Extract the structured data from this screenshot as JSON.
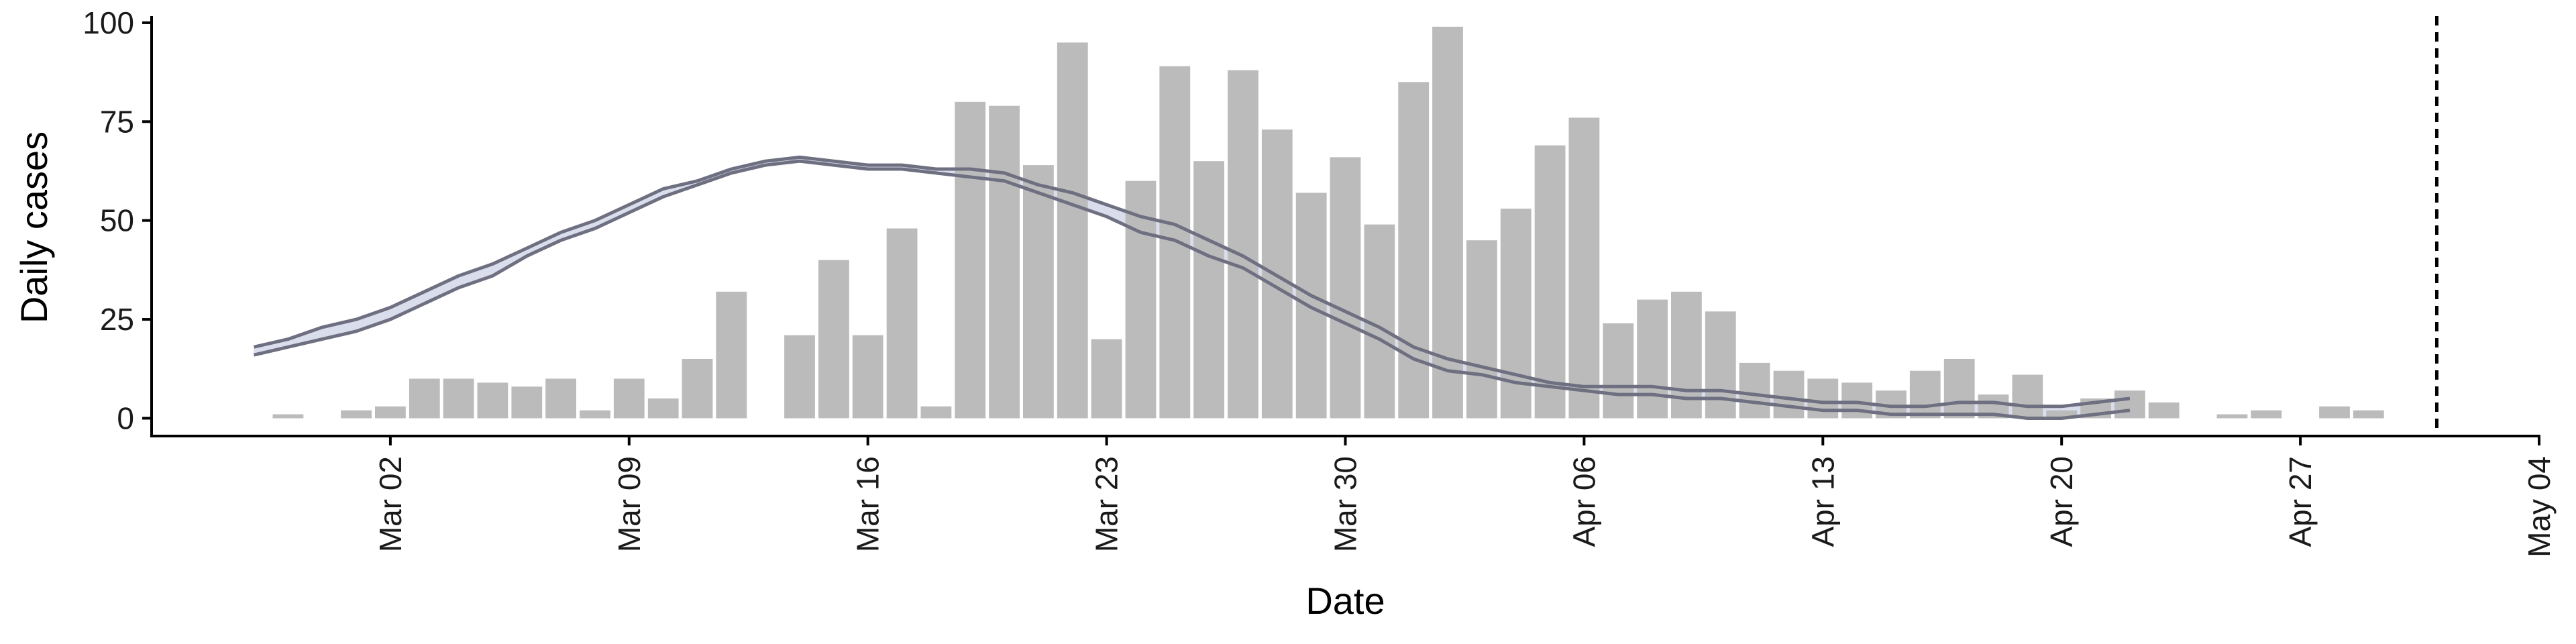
{
  "chart_data": {
    "type": "bar",
    "xlabel": "Date",
    "ylabel": "Daily cases",
    "x_tick_labels": [
      "Mar 02",
      "Mar 09",
      "Mar 16",
      "Mar 23",
      "Mar 30",
      "Apr 06",
      "Apr 13",
      "Apr 20",
      "Apr 27",
      "May 04"
    ],
    "x_tick_dates": [
      "2020-03-02",
      "2020-03-09",
      "2020-03-16",
      "2020-03-23",
      "2020-03-30",
      "2020-04-06",
      "2020-04-13",
      "2020-04-20",
      "2020-04-27",
      "2020-05-04"
    ],
    "y_ticks": [
      0,
      25,
      50,
      75,
      100
    ],
    "ylim": [
      -4.5,
      101
    ],
    "xlim": [
      "2020-02-24",
      "2020-05-04"
    ],
    "bar_color": "#bbbbbb",
    "bars": {
      "dates": [
        "2020-02-27",
        "2020-02-28",
        "2020-02-29",
        "2020-03-01",
        "2020-03-02",
        "2020-03-03",
        "2020-03-04",
        "2020-03-05",
        "2020-03-06",
        "2020-03-07",
        "2020-03-08",
        "2020-03-09",
        "2020-03-10",
        "2020-03-11",
        "2020-03-12",
        "2020-03-13",
        "2020-03-14",
        "2020-03-15",
        "2020-03-16",
        "2020-03-17",
        "2020-03-18",
        "2020-03-19",
        "2020-03-20",
        "2020-03-21",
        "2020-03-22",
        "2020-03-23",
        "2020-03-24",
        "2020-03-25",
        "2020-03-26",
        "2020-03-27",
        "2020-03-28",
        "2020-03-29",
        "2020-03-30",
        "2020-03-31",
        "2020-04-01",
        "2020-04-02",
        "2020-04-03",
        "2020-04-04",
        "2020-04-05",
        "2020-04-06",
        "2020-04-07",
        "2020-04-08",
        "2020-04-09",
        "2020-04-10",
        "2020-04-11",
        "2020-04-12",
        "2020-04-13",
        "2020-04-14",
        "2020-04-15",
        "2020-04-16",
        "2020-04-17",
        "2020-04-18",
        "2020-04-19",
        "2020-04-20",
        "2020-04-21",
        "2020-04-22",
        "2020-04-23",
        "2020-04-24",
        "2020-04-25",
        "2020-04-26",
        "2020-04-27",
        "2020-04-28",
        "2020-04-29",
        "2020-04-30"
      ],
      "values": [
        0,
        1,
        0,
        2,
        3,
        10,
        10,
        9,
        8,
        10,
        2,
        10,
        5,
        15,
        32,
        0,
        21,
        40,
        21,
        48,
        3,
        80,
        79,
        64,
        95,
        20,
        60,
        89,
        65,
        88,
        73,
        57,
        66,
        49,
        85,
        99,
        45,
        53,
        69,
        76,
        24,
        30,
        32,
        27,
        14,
        12,
        10,
        9,
        7,
        12,
        15,
        6,
        11,
        2,
        5,
        7,
        4,
        0,
        1,
        2,
        0,
        3,
        2,
        0
      ]
    },
    "series": [
      {
        "color": "#6e7081",
        "band_color": "#cdd2e4",
        "dates": [
          "2020-02-27",
          "2020-02-28",
          "2020-02-29",
          "2020-03-01",
          "2020-03-02",
          "2020-03-03",
          "2020-03-04",
          "2020-03-05",
          "2020-03-06",
          "2020-03-07",
          "2020-03-08",
          "2020-03-09",
          "2020-03-10",
          "2020-03-11",
          "2020-03-12",
          "2020-03-13",
          "2020-03-14",
          "2020-03-15",
          "2020-03-16",
          "2020-03-17",
          "2020-03-18",
          "2020-03-19",
          "2020-03-20",
          "2020-03-21",
          "2020-03-22",
          "2020-03-23",
          "2020-03-24",
          "2020-03-25",
          "2020-03-26",
          "2020-03-27",
          "2020-03-28",
          "2020-03-29",
          "2020-03-30",
          "2020-03-31",
          "2020-04-01",
          "2020-04-02",
          "2020-04-03",
          "2020-04-04",
          "2020-04-05",
          "2020-04-06",
          "2020-04-07",
          "2020-04-08",
          "2020-04-09",
          "2020-04-10",
          "2020-04-11",
          "2020-04-12",
          "2020-04-13",
          "2020-04-14",
          "2020-04-15",
          "2020-04-16",
          "2020-04-17",
          "2020-04-18",
          "2020-04-19",
          "2020-04-20",
          "2020-04-21",
          "2020-04-22"
        ],
        "upper": [
          18,
          20,
          23,
          25,
          28,
          32,
          36,
          39,
          43,
          47,
          50,
          54,
          58,
          60,
          63,
          65,
          66,
          65,
          64,
          64,
          63,
          63,
          62,
          59,
          57,
          54,
          51,
          49,
          45,
          41,
          36,
          31,
          27,
          23,
          18,
          15,
          13,
          11,
          9,
          8,
          8,
          8,
          7,
          7,
          6,
          5,
          4,
          4,
          3,
          3,
          4,
          4,
          3,
          3,
          4,
          5
        ],
        "lower": [
          16,
          18,
          20,
          22,
          25,
          29,
          33,
          36,
          41,
          45,
          48,
          52,
          56,
          59,
          62,
          64,
          65,
          64,
          63,
          63,
          62,
          61,
          60,
          57,
          54,
          51,
          47,
          45,
          41,
          38,
          33,
          28,
          24,
          20,
          15,
          12,
          11,
          9,
          8,
          7,
          6,
          6,
          5,
          5,
          4,
          3,
          2,
          2,
          1,
          1,
          1,
          1,
          0,
          0,
          1,
          2
        ]
      }
    ],
    "reference_lines": [
      {
        "axis": "x",
        "date": "2020-05-01",
        "style": "dashed",
        "color": "#000000"
      }
    ]
  }
}
